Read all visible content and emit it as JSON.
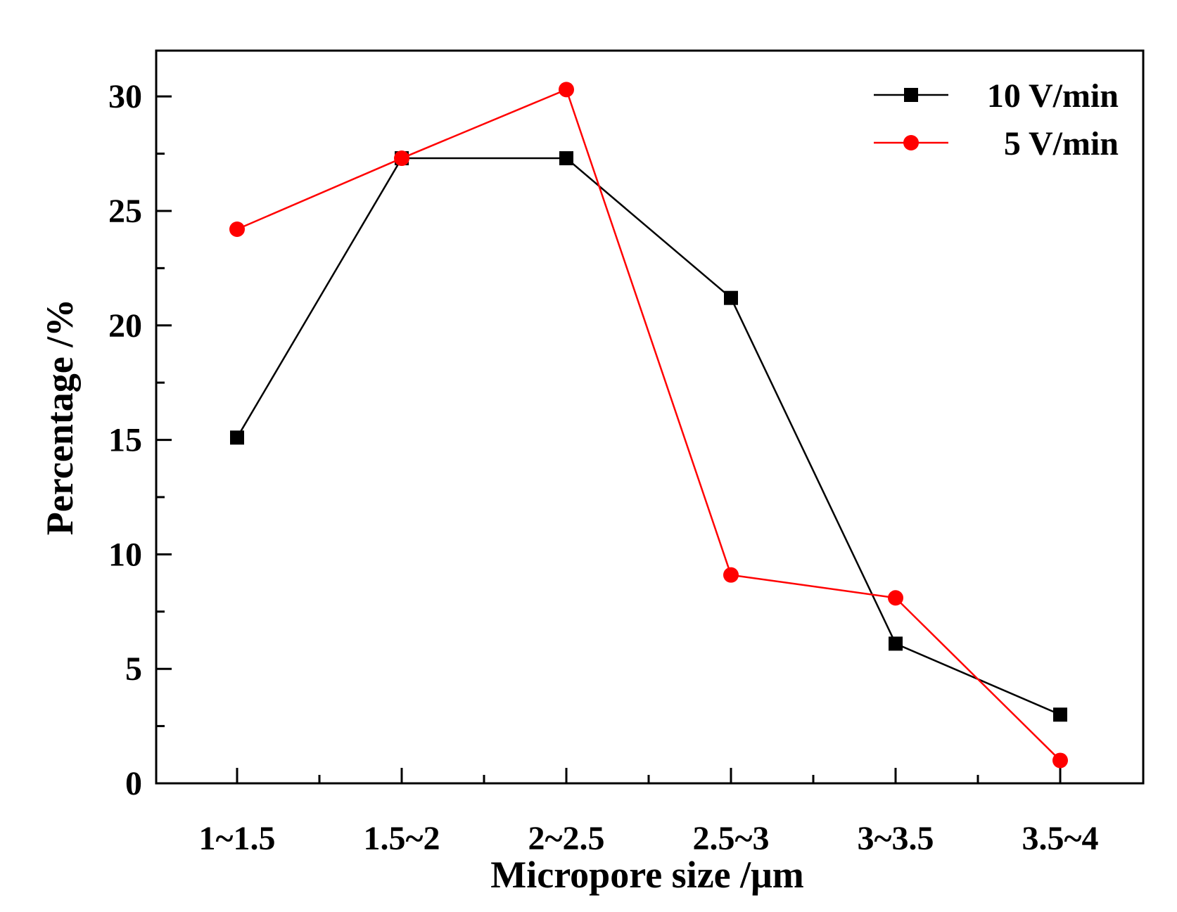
{
  "chart_data": {
    "type": "line",
    "title": "",
    "xlabel": "Micropore size /μm",
    "ylabel": "Percentage /%",
    "categories": [
      "1~1.5",
      "1.5~2",
      "2~2.5",
      "2.5~3",
      "3~3.5",
      "3.5~4"
    ],
    "ylim": [
      0,
      32
    ],
    "yticks": [
      0,
      5,
      10,
      15,
      20,
      25,
      30
    ],
    "grid": false,
    "legend_position": "top-right",
    "series": [
      {
        "name": "10 V/min",
        "marker": "square",
        "color": "#000000",
        "values": [
          15.1,
          27.3,
          27.3,
          21.2,
          6.1,
          3.0
        ]
      },
      {
        "name": "5 V/min",
        "marker": "circle",
        "color": "#ff0000",
        "values": [
          24.2,
          27.3,
          30.3,
          9.1,
          8.1,
          1.0
        ]
      }
    ]
  }
}
